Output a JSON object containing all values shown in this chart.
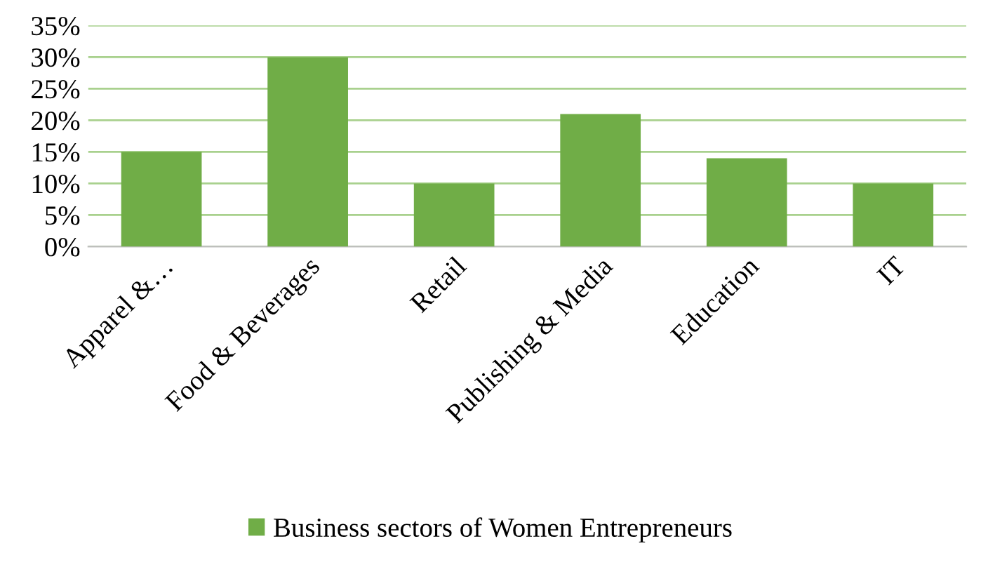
{
  "chart_data": {
    "type": "bar",
    "categories": [
      "Apparel &…",
      "Food & Beverages",
      "Retail",
      "Publishing & Media",
      "Education",
      "IT"
    ],
    "series": [
      {
        "name": "Business sectors of Women Entrepreneurs",
        "color": "#70ad47",
        "values": [
          0.15,
          0.3,
          0.1,
          0.21,
          0.14,
          0.1
        ]
      }
    ],
    "ylim": [
      0,
      0.35
    ],
    "yticks": [
      {
        "value": 0,
        "label": "0%"
      },
      {
        "value": 0.05,
        "label": "5%"
      },
      {
        "value": 0.1,
        "label": "10%"
      },
      {
        "value": 0.15,
        "label": "15%"
      },
      {
        "value": 0.2,
        "label": "20%"
      },
      {
        "value": 0.25,
        "label": "25%"
      },
      {
        "value": 0.3,
        "label": "30%"
      },
      {
        "value": 0.35,
        "label": "35%"
      }
    ],
    "grid": "y",
    "legend": "bottom"
  }
}
